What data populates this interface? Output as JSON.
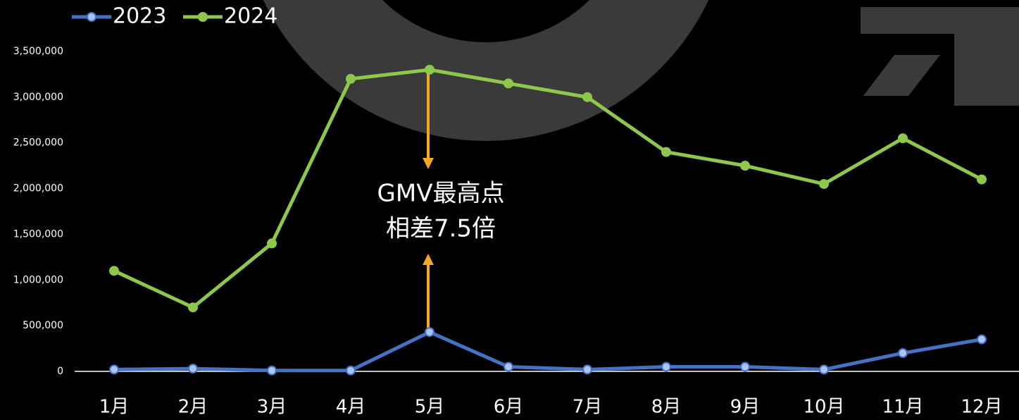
{
  "chart_data": {
    "type": "line",
    "categories": [
      "1月",
      "2月",
      "3月",
      "4月",
      "5月",
      "6月",
      "7月",
      "8月",
      "9月",
      "10月",
      "11月",
      "12月"
    ],
    "series": [
      {
        "name": "2023",
        "color": "#4472c4",
        "values": [
          20000,
          30000,
          10000,
          10000,
          430000,
          50000,
          20000,
          50000,
          50000,
          20000,
          200000,
          350000
        ]
      },
      {
        "name": "2024",
        "color": "#8dc84c",
        "values": [
          1100000,
          700000,
          1400000,
          3200000,
          3300000,
          3150000,
          3000000,
          2400000,
          2250000,
          2050000,
          2550000,
          2100000
        ]
      }
    ],
    "ylim": [
      0,
      3500000
    ],
    "yticks": [
      0,
      {
        "value": 500000,
        "label": "500,000"
      },
      {
        "value": 1000000,
        "label": "1,000,000"
      },
      {
        "value": 1500000,
        "label": "1,500,000"
      },
      {
        "value": 2000000,
        "label": "2,000,000"
      },
      {
        "value": 2500000,
        "label": "2,500,000"
      },
      {
        "value": 3000000,
        "label": "3,000,000"
      },
      {
        "value": 3500000,
        "label": "3,500,000"
      }
    ],
    "annotation": [
      "GMV最高点",
      "相差7.5倍"
    ],
    "legend": "top-left"
  }
}
